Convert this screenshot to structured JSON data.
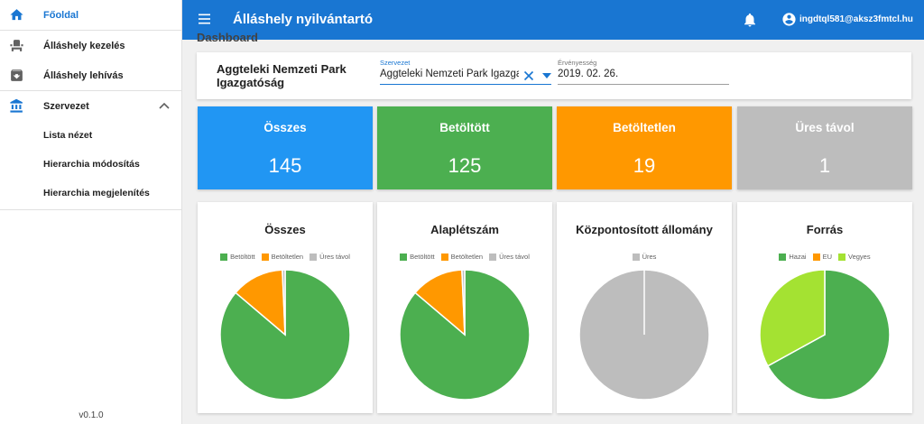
{
  "sidebar": {
    "items": [
      {
        "label": "Főoldal",
        "icon": "home-icon",
        "active": true
      },
      {
        "label": "Álláshely kezelés",
        "icon": "seat-icon"
      },
      {
        "label": "Álláshely lehívás",
        "icon": "download-box-icon"
      },
      {
        "label": "Szervezet",
        "icon": "bank-icon",
        "expanded": true,
        "children": [
          "Lista nézet",
          "Hierarchia módosítás",
          "Hierarchia megjelenítés"
        ]
      }
    ],
    "version": "v0.1.0"
  },
  "topbar": {
    "title": "Álláshely nyilvántartó",
    "user_email": "ingdtql581@aksz3fmtcl.hu",
    "color": "#1976d2"
  },
  "dashboard": {
    "title": "Dashboard",
    "org_name": "Aggteleki Nemzeti Park Igazgatóság",
    "org_field_label": "Szervezet",
    "org_field_value": "Aggteleki Nemzeti Park Igazgatóság",
    "date_field_label": "Érvényesség",
    "date_field_value": "2019. 02. 26."
  },
  "stats": [
    {
      "label": "Összes",
      "value": "145",
      "color": "#2196f3"
    },
    {
      "label": "Betöltött",
      "value": "125",
      "color": "#4caf50"
    },
    {
      "label": "Betöltetlen",
      "value": "19",
      "color": "#ff9800"
    },
    {
      "label": "Üres távol",
      "value": "1",
      "color": "#bdbdbd"
    }
  ],
  "chart_data": [
    {
      "type": "pie",
      "title": "Összes",
      "categories": [
        "Betöltött",
        "Betöltetlen",
        "Üres távol"
      ],
      "values": [
        125,
        19,
        1
      ],
      "colors": [
        "#4caf50",
        "#ff9800",
        "#bdbdbd"
      ],
      "legend": "top"
    },
    {
      "type": "pie",
      "title": "Alaplétszám",
      "categories": [
        "Betöltött",
        "Betöltetlen",
        "Üres távol"
      ],
      "values": [
        125,
        19,
        1
      ],
      "colors": [
        "#4caf50",
        "#ff9800",
        "#bdbdbd"
      ],
      "legend": "top"
    },
    {
      "type": "pie",
      "title": "Központosított állomány",
      "categories": [
        "Üres"
      ],
      "values": [
        1
      ],
      "colors": [
        "#bdbdbd"
      ],
      "legend": "top"
    },
    {
      "type": "pie",
      "title": "Forrás",
      "categories": [
        "Hazai",
        "EU",
        "Vegyes"
      ],
      "values": [
        67,
        0,
        33
      ],
      "colors": [
        "#4caf50",
        "#ff9800",
        "#a4e232"
      ],
      "legend": "top"
    }
  ]
}
